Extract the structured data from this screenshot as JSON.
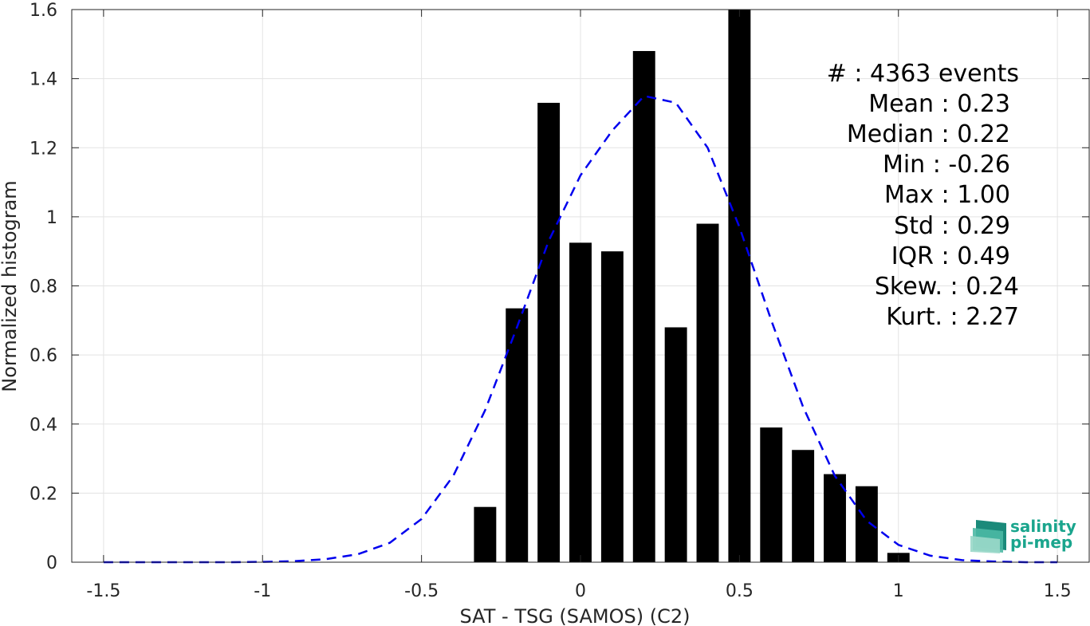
{
  "chart_data": {
    "type": "bar",
    "xlabel": "SAT - TSG (SAMOS) (C2)",
    "ylabel": "Normalized histogram",
    "xlim": [
      -1.6,
      1.6
    ],
    "ylim": [
      0,
      1.6
    ],
    "grid": true,
    "xticks": [
      -1.5,
      -1,
      -0.5,
      0,
      0.5,
      1,
      1.5
    ],
    "xtick_labels": [
      "-1.5",
      "-1",
      "-0.5",
      "0",
      "0.5",
      "1",
      "1.5"
    ],
    "yticks": [
      0,
      0.2,
      0.4,
      0.6,
      0.8,
      1,
      1.2,
      1.4,
      1.6
    ],
    "ytick_labels": [
      "0",
      "0.2",
      "0.4",
      "0.6",
      "0.8",
      "1",
      "1.2",
      "1.4",
      "1.6"
    ],
    "bar_color": "#000000",
    "bar_width": 0.07,
    "bars": [
      {
        "x": -0.3,
        "y": 0.16
      },
      {
        "x": -0.2,
        "y": 0.735
      },
      {
        "x": -0.1,
        "y": 1.33
      },
      {
        "x": 0.0,
        "y": 0.925
      },
      {
        "x": 0.1,
        "y": 0.9
      },
      {
        "x": 0.2,
        "y": 1.48
      },
      {
        "x": 0.3,
        "y": 0.68
      },
      {
        "x": 0.4,
        "y": 0.98
      },
      {
        "x": 0.5,
        "y": 1.6
      },
      {
        "x": 0.6,
        "y": 0.39
      },
      {
        "x": 0.7,
        "y": 0.325
      },
      {
        "x": 0.8,
        "y": 0.255
      },
      {
        "x": 0.9,
        "y": 0.22
      },
      {
        "x": 1.0,
        "y": 0.027
      }
    ],
    "fit_curve": {
      "style": "dashed",
      "color": "#0000ee",
      "x": [
        -1.5,
        -1.4,
        -1.3,
        -1.2,
        -1.1,
        -1.0,
        -0.9,
        -0.8,
        -0.7,
        -0.6,
        -0.5,
        -0.4,
        -0.3,
        -0.2,
        -0.1,
        0.0,
        0.1,
        0.2,
        0.3,
        0.4,
        0.5,
        0.6,
        0.7,
        0.8,
        0.9,
        1.0,
        1.1,
        1.2,
        1.3,
        1.4,
        1.5
      ],
      "y": [
        0.0,
        0.0,
        0.0,
        0.0,
        0.0,
        0.001,
        0.003,
        0.009,
        0.023,
        0.056,
        0.125,
        0.25,
        0.44,
        0.68,
        0.93,
        1.12,
        1.25,
        1.35,
        1.33,
        1.2,
        0.97,
        0.7,
        0.45,
        0.25,
        0.12,
        0.05,
        0.019,
        0.006,
        0.002,
        0.0,
        0.0
      ]
    }
  },
  "stats": {
    "count": "#  : 4363 events",
    "mean": "Mean : 0.23",
    "median": "Median : 0.22",
    "min": "Min : -0.26",
    "max": "Max : 1.00",
    "std": "Std : 0.29",
    "iqr": "IQR : 0.49",
    "skew": "Skew. : 0.24",
    "kurt": "Kurt. : 2.27"
  },
  "logo": {
    "line1": "salinity",
    "line2": "pi-mep",
    "color": "#1aa58d"
  }
}
